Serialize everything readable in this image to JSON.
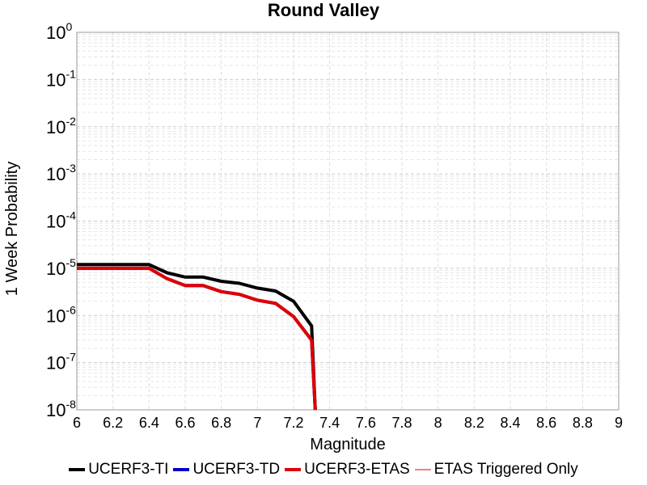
{
  "chart_data": {
    "type": "line",
    "title": "Round Valley",
    "xlabel": "Magnitude",
    "ylabel": "1 Week Probability",
    "xlim": [
      6,
      9
    ],
    "ylim": [
      1e-08,
      1
    ],
    "y_scale": "log",
    "grid": true,
    "legend_position": "bottom",
    "x_ticks": [
      "6",
      "6.2",
      "6.4",
      "6.6",
      "6.8",
      "7",
      "7.2",
      "7.4",
      "7.6",
      "7.8",
      "8",
      "8.2",
      "8.4",
      "8.6",
      "8.8",
      "9"
    ],
    "y_tick_exponents": [
      "0",
      "-1",
      "-2",
      "-3",
      "-4",
      "-5",
      "-6",
      "-7",
      "-8"
    ],
    "series": [
      {
        "name": "UCERF3-TI",
        "color": "#000000",
        "x": [
          6.0,
          6.1,
          6.2,
          6.3,
          6.4,
          6.5,
          6.6,
          6.7,
          6.8,
          6.9,
          7.0,
          7.1,
          7.2,
          7.3,
          7.32
        ],
        "y": [
          1.2e-05,
          1.2e-05,
          1.2e-05,
          1.2e-05,
          1.2e-05,
          8e-06,
          6.5e-06,
          6.5e-06,
          5.3e-06,
          4.8e-06,
          3.8e-06,
          3.3e-06,
          2e-06,
          6e-07,
          1e-08
        ]
      },
      {
        "name": "UCERF3-TD",
        "color": "#0000cc",
        "x": [
          6.0,
          6.1,
          6.2,
          6.3,
          6.4,
          6.5,
          6.6,
          6.7,
          6.8,
          6.9,
          7.0,
          7.1,
          7.2,
          7.3,
          7.32
        ],
        "y": [
          1e-05,
          1e-05,
          1e-05,
          1e-05,
          1e-05,
          6e-06,
          4.3e-06,
          4.3e-06,
          3.2e-06,
          2.8e-06,
          2.1e-06,
          1.8e-06,
          9.5e-07,
          3e-07,
          1e-08
        ]
      },
      {
        "name": "UCERF3-ETAS",
        "color": "#e00000",
        "x": [
          6.0,
          6.1,
          6.2,
          6.3,
          6.4,
          6.5,
          6.6,
          6.7,
          6.8,
          6.9,
          7.0,
          7.1,
          7.2,
          7.3,
          7.32
        ],
        "y": [
          1e-05,
          1e-05,
          1e-05,
          1e-05,
          1e-05,
          6e-06,
          4.3e-06,
          4.3e-06,
          3.2e-06,
          2.8e-06,
          2.1e-06,
          1.8e-06,
          9.5e-07,
          3e-07,
          1e-08
        ]
      },
      {
        "name": "ETAS Triggered Only",
        "color": "#f08080",
        "x": [],
        "y": []
      }
    ]
  }
}
